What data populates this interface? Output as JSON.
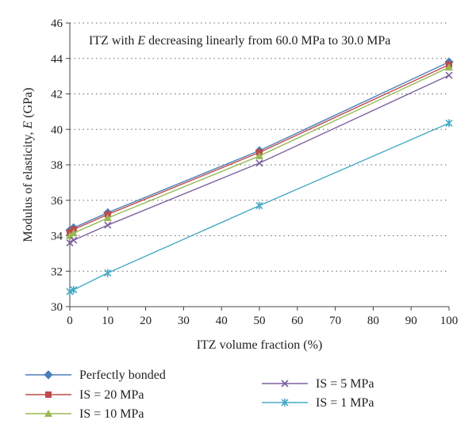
{
  "chart_data": {
    "type": "line",
    "annotation": "ITZ with E decreasing linearly from 60.0 MPa to 30.0 MPa",
    "xlabel": "ITZ volume fraction (%)",
    "ylabel": "Modulus of elasticity, E (GPa)",
    "xlim": [
      0,
      100
    ],
    "ylim": [
      30,
      46
    ],
    "xticks": [
      0,
      10,
      20,
      30,
      40,
      50,
      60,
      70,
      80,
      90,
      100
    ],
    "yticks": [
      30,
      32,
      34,
      36,
      38,
      40,
      42,
      44,
      46
    ],
    "grid": "horizontal-dotted",
    "legend_placement": "bottom",
    "x": [
      0,
      1,
      10,
      50,
      100
    ],
    "series": [
      {
        "name": "Perfectly bonded",
        "values": [
          34.3,
          34.45,
          35.3,
          38.8,
          43.8
        ],
        "color": "#4a7ebb",
        "marker": "diamond"
      },
      {
        "name": "IS = 20 MPa",
        "values": [
          34.2,
          34.35,
          35.2,
          38.7,
          43.65
        ],
        "color": "#be4b48",
        "marker": "square"
      },
      {
        "name": "IS = 10 MPa",
        "values": [
          34.0,
          34.15,
          35.0,
          38.5,
          43.5
        ],
        "color": "#98b954",
        "marker": "triangle"
      },
      {
        "name": "IS = 5 MPa",
        "values": [
          33.6,
          33.75,
          34.6,
          38.1,
          43.05
        ],
        "color": "#7d60a0",
        "marker": "x"
      },
      {
        "name": "IS = 1 MPa",
        "values": [
          30.85,
          30.95,
          31.9,
          35.7,
          40.35
        ],
        "color": "#46aac5",
        "marker": "star"
      }
    ]
  }
}
